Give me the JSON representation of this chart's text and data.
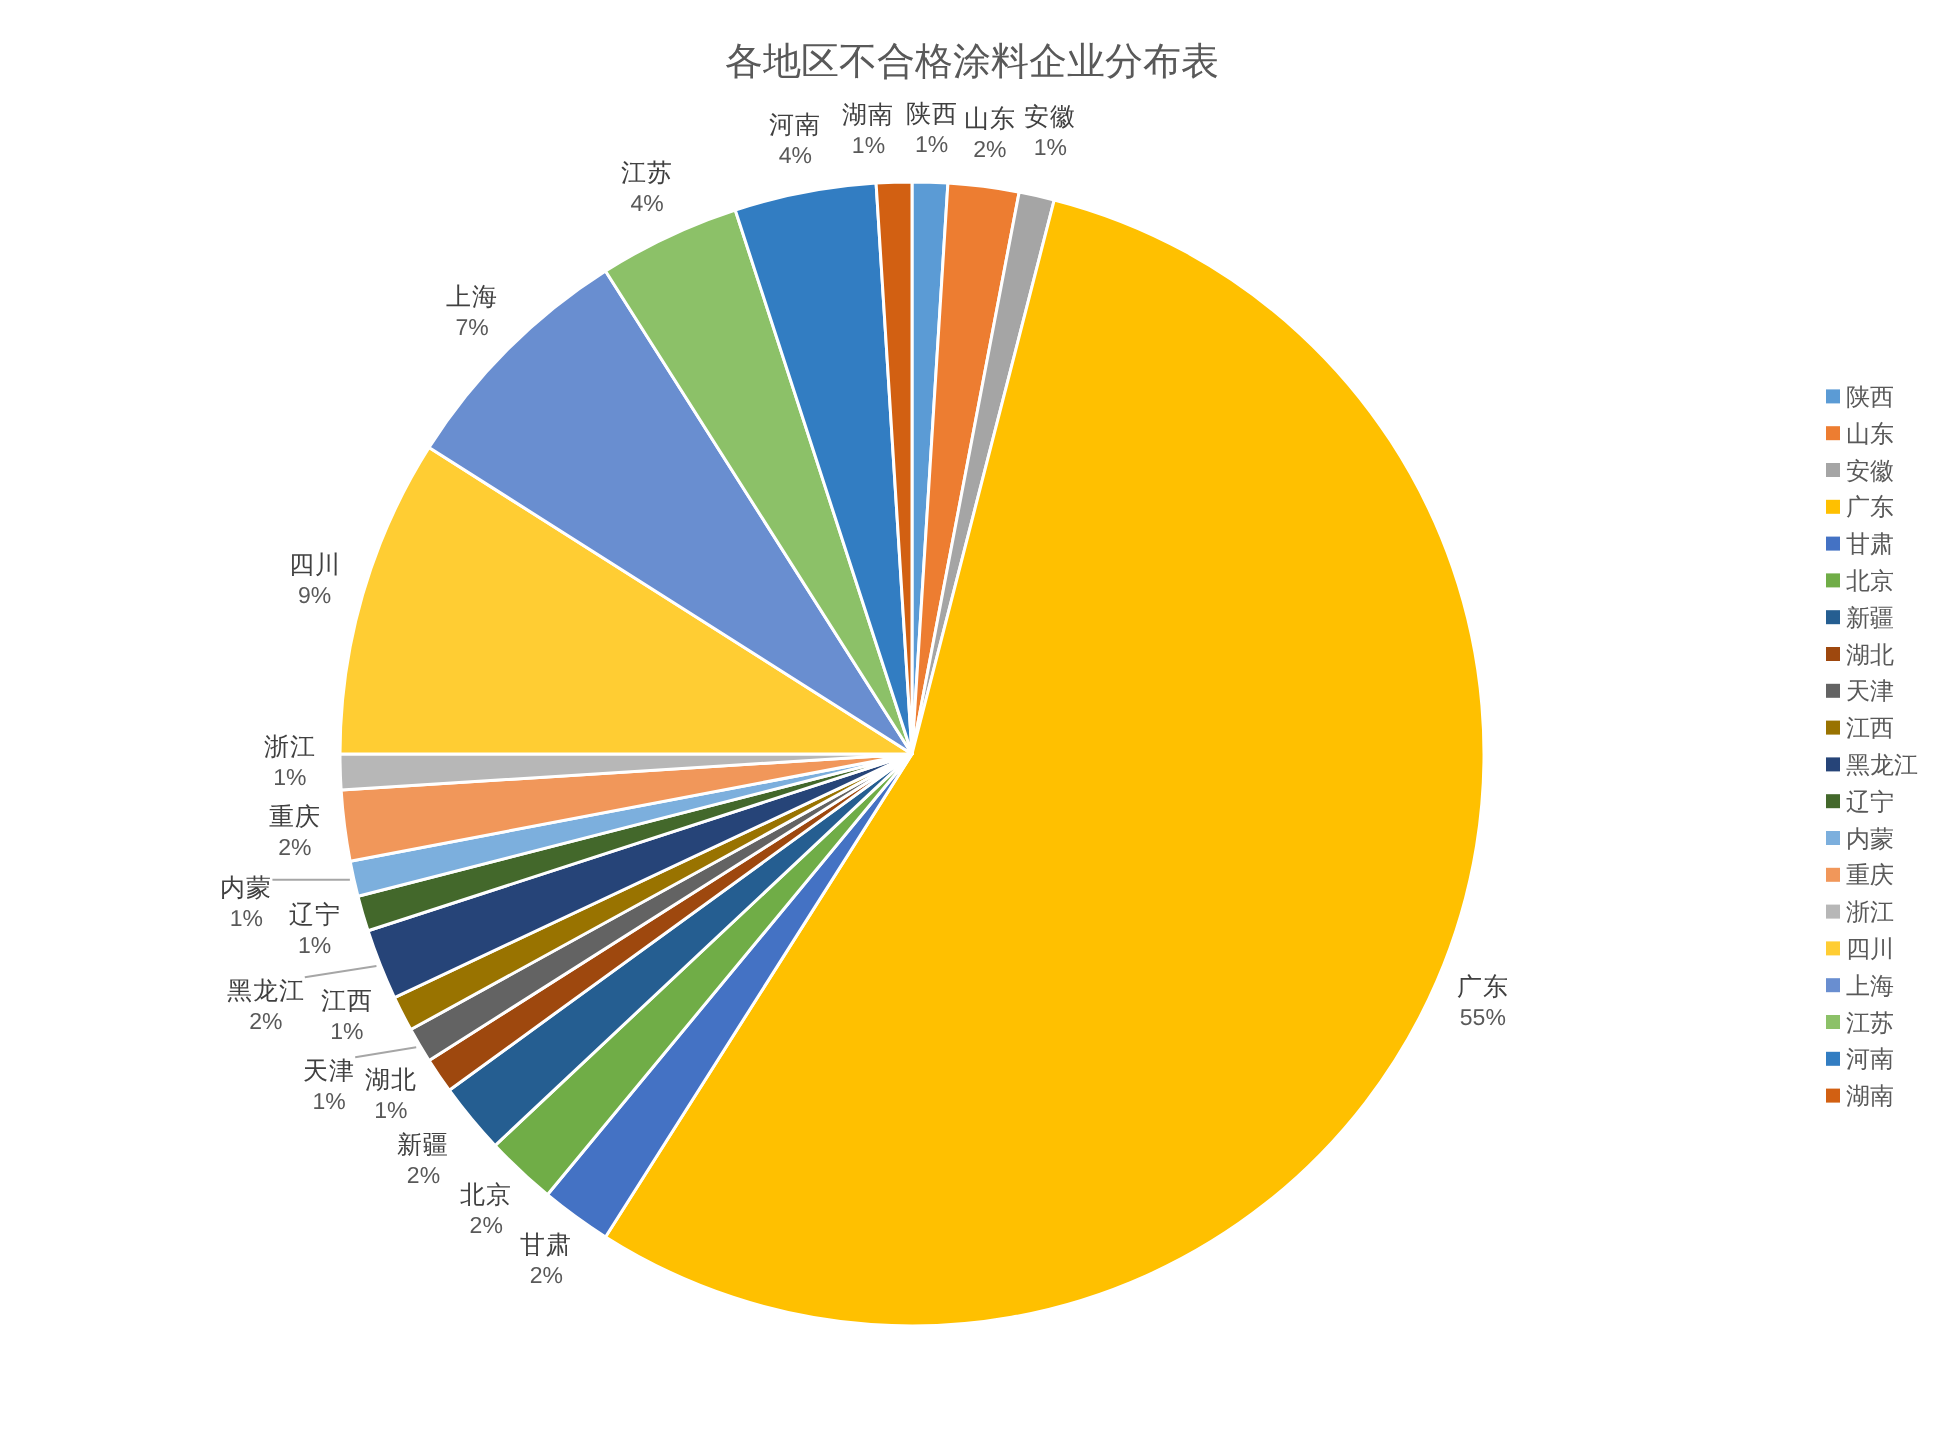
{
  "chart_data": {
    "type": "pie",
    "title": "各地区不合格涂料企业分布表",
    "categories": [
      "陕西",
      "山东",
      "安徽",
      "广东",
      "甘肃",
      "北京",
      "新疆",
      "湖北",
      "天津",
      "江西",
      "黑龙江",
      "辽宁",
      "内蒙",
      "重庆",
      "浙江",
      "四川",
      "上海",
      "江苏",
      "河南",
      "湖南"
    ],
    "values": [
      1,
      2,
      1,
      55,
      2,
      2,
      2,
      1,
      1,
      1,
      2,
      1,
      1,
      2,
      1,
      9,
      7,
      4,
      4,
      1
    ],
    "value_labels": [
      "1%",
      "2%",
      "1%",
      "55%",
      "2%",
      "2%",
      "2%",
      "1%",
      "1%",
      "1%",
      "2%",
      "1%",
      "1%",
      "2%",
      "1%",
      "9%",
      "7%",
      "4%",
      "4%",
      "1%"
    ],
    "colors": [
      "#5b9bd5",
      "#ed7d31",
      "#a5a5a5",
      "#ffc000",
      "#4472c4",
      "#70ad47",
      "#255e91",
      "#9e480e",
      "#636363",
      "#997300",
      "#264478",
      "#43682b",
      "#7cafdd",
      "#f1975a",
      "#b7b7b7",
      "#ffcd33",
      "#698ed0",
      "#8cc168",
      "#327dc2",
      "#d26012"
    ],
    "legend": "right"
  }
}
